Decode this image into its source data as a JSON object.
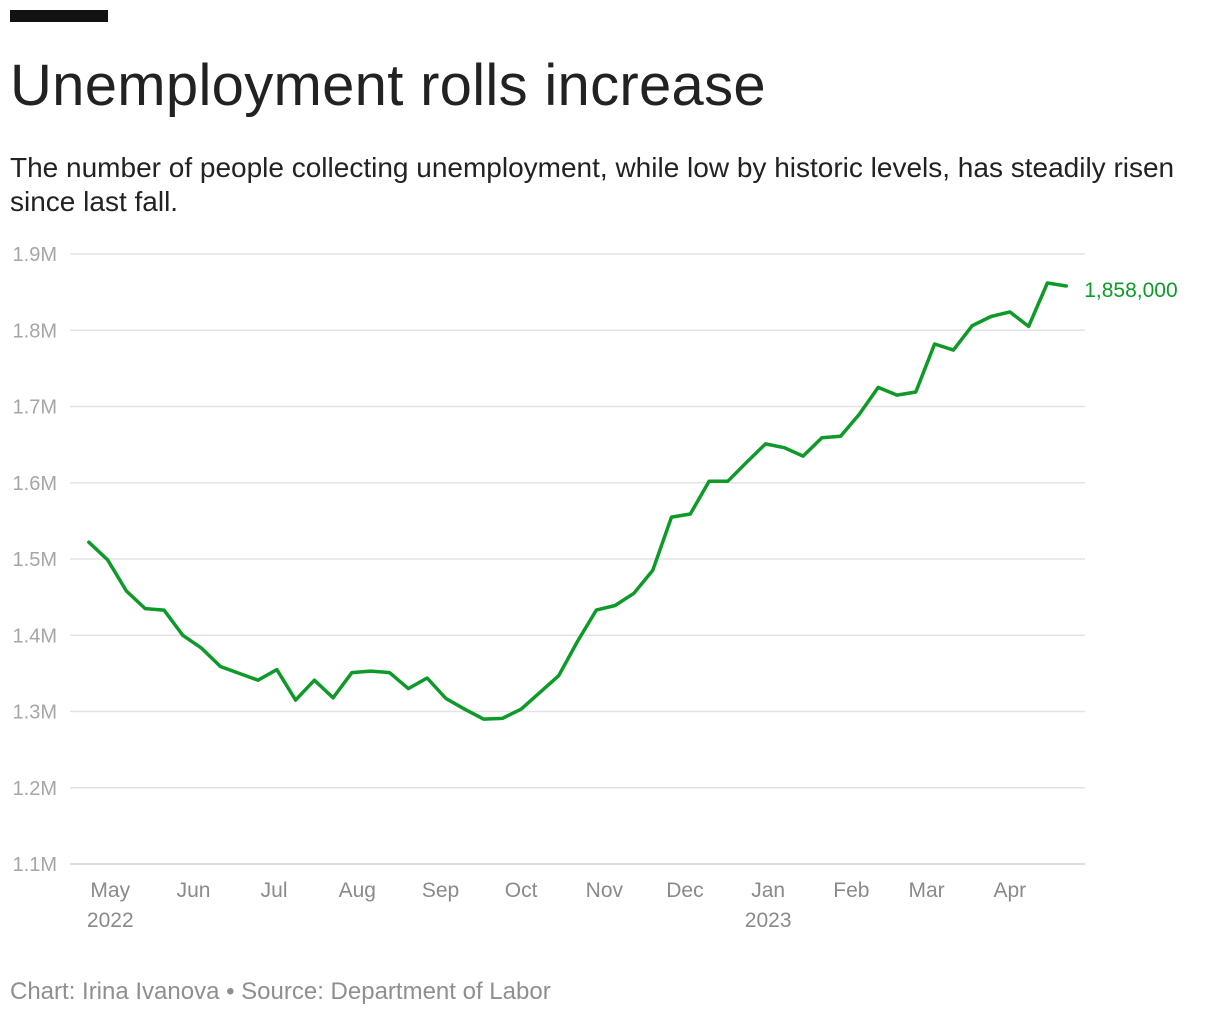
{
  "header": {
    "title": "Unemployment rolls increase",
    "subtitle": "The number of people collecting unemployment, while low by historic levels, has steadily risen since last fall."
  },
  "footer": {
    "credit": "Chart: Irina Ivanova • Source: Department of Labor"
  },
  "colors": {
    "line": "#0e9a28",
    "grid": "#e3e3e3",
    "axis_text": "#a6a6a6"
  },
  "chart_data": {
    "type": "line",
    "title": "Unemployment rolls increase",
    "ylim": [
      1100000,
      1900000
    ],
    "yticks": [
      {
        "value": 1100000,
        "label": "1.1M"
      },
      {
        "value": 1200000,
        "label": "1.2M"
      },
      {
        "value": 1300000,
        "label": "1.3M"
      },
      {
        "value": 1400000,
        "label": "1.4M"
      },
      {
        "value": 1500000,
        "label": "1.5M"
      },
      {
        "value": 1600000,
        "label": "1.6M"
      },
      {
        "value": 1700000,
        "label": "1.7M"
      },
      {
        "value": 1800000,
        "label": "1.8M"
      },
      {
        "value": 1900000,
        "label": "1.9M"
      }
    ],
    "xlim": [
      "2022-04-16",
      "2023-04-29"
    ],
    "xticks": [
      {
        "date": "2022-05-01",
        "label": "May",
        "sublabel": "2022"
      },
      {
        "date": "2022-06-01",
        "label": "Jun"
      },
      {
        "date": "2022-07-01",
        "label": "Jul"
      },
      {
        "date": "2022-08-01",
        "label": "Aug"
      },
      {
        "date": "2022-09-01",
        "label": "Sep"
      },
      {
        "date": "2022-10-01",
        "label": "Oct"
      },
      {
        "date": "2022-11-01",
        "label": "Nov"
      },
      {
        "date": "2022-12-01",
        "label": "Dec"
      },
      {
        "date": "2023-01-01",
        "label": "Jan",
        "sublabel": "2023"
      },
      {
        "date": "2023-02-01",
        "label": "Feb"
      },
      {
        "date": "2023-03-01",
        "label": "Mar"
      },
      {
        "date": "2023-04-01",
        "label": "Apr"
      }
    ],
    "grid": true,
    "series": [
      {
        "color": "#0e9a28",
        "end_label": "1,858,000",
        "dates": [
          "2022-04-23",
          "2022-04-30",
          "2022-05-07",
          "2022-05-14",
          "2022-05-21",
          "2022-05-28",
          "2022-06-04",
          "2022-06-11",
          "2022-06-18",
          "2022-06-25",
          "2022-07-02",
          "2022-07-09",
          "2022-07-16",
          "2022-07-23",
          "2022-07-30",
          "2022-08-06",
          "2022-08-13",
          "2022-08-20",
          "2022-08-27",
          "2022-09-03",
          "2022-09-10",
          "2022-09-17",
          "2022-09-24",
          "2022-10-01",
          "2022-10-08",
          "2022-10-15",
          "2022-10-22",
          "2022-10-29",
          "2022-11-05",
          "2022-11-12",
          "2022-11-19",
          "2022-11-26",
          "2022-12-03",
          "2022-12-10",
          "2022-12-17",
          "2022-12-24",
          "2022-12-31",
          "2023-01-07",
          "2023-01-14",
          "2023-01-21",
          "2023-01-28",
          "2023-02-04",
          "2023-02-11",
          "2023-02-18",
          "2023-02-25",
          "2023-03-04",
          "2023-03-11",
          "2023-03-18",
          "2023-03-25",
          "2023-04-01",
          "2023-04-08",
          "2023-04-15",
          "2023-04-22"
        ],
        "values": [
          1522000,
          1499000,
          1458000,
          1435000,
          1433000,
          1400000,
          1383000,
          1359000,
          1350000,
          1341000,
          1355000,
          1315000,
          1341000,
          1318000,
          1351000,
          1353000,
          1351000,
          1330000,
          1344000,
          1317000,
          1303000,
          1290000,
          1291000,
          1303000,
          1325000,
          1347000,
          1392000,
          1433000,
          1439000,
          1455000,
          1485000,
          1555000,
          1559000,
          1602000,
          1602000,
          1627000,
          1651000,
          1646000,
          1635000,
          1659000,
          1661000,
          1690000,
          1725000,
          1715000,
          1719000,
          1782000,
          1774000,
          1806000,
          1818000,
          1824000,
          1805000,
          1862000,
          1858000
        ]
      }
    ]
  }
}
